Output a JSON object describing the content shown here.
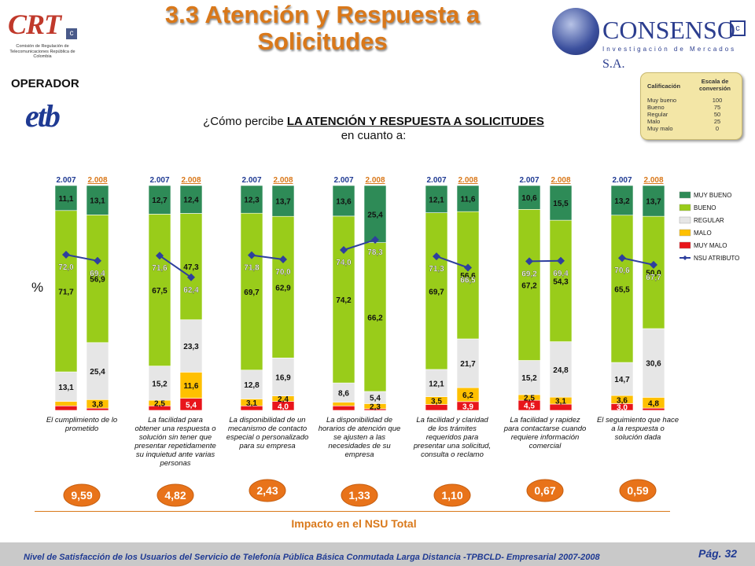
{
  "title": "3.3 Atención y Respuesta a Solicitudes",
  "logos": {
    "crt": "CRT",
    "crt_badge": "c",
    "crt_sub": "Comisión de Regulación de Telecomunicaciones República de Colombia",
    "consenso": "CONSENSO",
    "consenso_sa": "S.A.",
    "consenso_sub": "Investigación de Mercados",
    "consenso_badge": "c"
  },
  "operator_label": "OPERADOR",
  "operator_logo": "etb",
  "question_prefix": "¿Cómo percibe ",
  "question_bold": "LA ATENCIÓN Y RESPUESTA A SOLICITUDES",
  "question_suffix": " en cuanto a:",
  "scale_table": {
    "header_left": "Calificación",
    "header_right": "Escala de conversión",
    "rows": [
      {
        "label": "Muy bueno",
        "value": "100"
      },
      {
        "label": "Bueno",
        "value": "75"
      },
      {
        "label": "Regular",
        "value": "50"
      },
      {
        "label": "Malo",
        "value": "25"
      },
      {
        "label": "Muy malo",
        "value": "0"
      }
    ]
  },
  "percent_symbol": "%",
  "impact_label": "Impacto en el NSU Total",
  "footer": "Nivel de Satisfacción de los Usuarios del Servicio de Telefonía Pública Básica Conmutada Larga Distancia -TPBCLD- Empresarial 2007-2008",
  "page_number": "Pág. 32",
  "chart_data": {
    "type": "bar",
    "stacked": true,
    "percent": true,
    "colors": {
      "MUY BUENO": "#2e8b57",
      "BUENO": "#99cc1a",
      "REGULAR": "#e6e6e6",
      "MALO": "#ffc000",
      "MUY MALO": "#e8151b",
      "NSU ATRIBUTO": "#2e3f9e"
    },
    "legend": [
      "MUY BUENO",
      "BUENO",
      "REGULAR",
      "MALO",
      "MUY MALO",
      "NSU ATRIBUTO"
    ],
    "legend_position": "right",
    "year_labels": [
      "2.007",
      "2.008"
    ],
    "groups": [
      {
        "label": "El cumplimiento de lo prometido",
        "impact": "9,59",
        "bars": [
          {
            "year": "2.007",
            "muy_malo": 2.0,
            "malo": 2.0,
            "regular": 13.1,
            "bueno": 71.7,
            "muy_bueno": 11.1,
            "nsu": 72.0,
            "labels": {
              "muy_bueno": "11,1",
              "bueno": "71,7",
              "regular": "13,1"
            }
          },
          {
            "year": "2.008",
            "muy_malo": 1.0,
            "malo": 3.8,
            "regular": 25.4,
            "bueno": 56.9,
            "muy_bueno": 13.1,
            "nsu": 69.4,
            "labels": {
              "muy_bueno": "13,1",
              "bueno": "56,9",
              "regular": "25,4",
              "malo": "3,8"
            }
          }
        ]
      },
      {
        "label": "La facilidad para obtener una respuesta o solución sin tener que presentar repetidamente su inquietud ante varias personas",
        "impact": "4,82",
        "bars": [
          {
            "year": "2.007",
            "muy_malo": 2.0,
            "malo": 2.5,
            "regular": 15.2,
            "bueno": 67.5,
            "muy_bueno": 12.7,
            "nsu": 71.6,
            "labels": {
              "muy_bueno": "12,7",
              "bueno": "67,5",
              "regular": "15,2",
              "malo": "2,5"
            }
          },
          {
            "year": "2.008",
            "muy_malo": 5.4,
            "malo": 11.6,
            "regular": 23.3,
            "bueno": 47.3,
            "muy_bueno": 12.4,
            "nsu": 62.4,
            "labels": {
              "muy_bueno": "12,4",
              "bueno": "47,3",
              "regular": "23,3",
              "malo": "11,6",
              "muy_malo": "5,4"
            }
          }
        ]
      },
      {
        "label": "La disponibilidad de un mecanismo de contacto especial o personalizado para su empresa",
        "impact": "2,43",
        "bars": [
          {
            "year": "2.007",
            "muy_malo": 2.0,
            "malo": 3.1,
            "regular": 12.8,
            "bueno": 69.7,
            "muy_bueno": 12.3,
            "nsu": 71.8,
            "labels": {
              "muy_bueno": "12,3",
              "bueno": "69,7",
              "regular": "12,8",
              "malo": "3,1"
            }
          },
          {
            "year": "2.008",
            "muy_malo": 4.0,
            "malo": 2.4,
            "regular": 16.9,
            "bueno": 62.9,
            "muy_bueno": 13.7,
            "nsu": 70.0,
            "labels": {
              "muy_bueno": "13,7",
              "bueno": "62,9",
              "regular": "16,9",
              "malo": "2,4",
              "muy_malo": "4,0"
            }
          }
        ]
      },
      {
        "label": "La disponibilidad de horarios de atención que se ajusten a las necesidades de su empresa",
        "impact": "1,33",
        "bars": [
          {
            "year": "2.007",
            "muy_malo": 2.0,
            "malo": 1.6,
            "regular": 8.6,
            "bueno": 74.2,
            "muy_bueno": 13.6,
            "nsu": 74.0,
            "labels": {
              "muy_bueno": "13,6",
              "bueno": "74,2",
              "regular": "8,6"
            }
          },
          {
            "year": "2.008",
            "muy_malo": 0.7,
            "malo": 2.3,
            "regular": 5.4,
            "bueno": 66.2,
            "muy_bueno": 25.4,
            "nsu": 78.3,
            "labels": {
              "muy_bueno": "25,4",
              "bueno": "66,2",
              "regular": "5,4",
              "malo": "2,3"
            }
          }
        ]
      },
      {
        "label": "La facilidad y claridad de los trámites requeridos para presentar una solicitud, consulta o reclamo",
        "impact": "1,10",
        "bars": [
          {
            "year": "2.007",
            "muy_malo": 2.6,
            "malo": 3.5,
            "regular": 12.1,
            "bueno": 69.7,
            "muy_bueno": 12.1,
            "nsu": 71.3,
            "labels": {
              "muy_bueno": "12,1",
              "bueno": "69,7",
              "regular": "12,1",
              "malo": "3,5"
            }
          },
          {
            "year": "2.008",
            "muy_malo": 3.9,
            "malo": 6.2,
            "regular": 21.7,
            "bueno": 56.6,
            "muy_bueno": 11.6,
            "nsu": 66.5,
            "labels": {
              "muy_bueno": "11,6",
              "bueno": "56,6",
              "regular": "21,7",
              "malo": "6,2",
              "muy_malo": "3,9"
            }
          }
        ]
      },
      {
        "label": "La facilidad y rapidez para contactarse cuando requiere información comercial",
        "impact": "0,67",
        "bars": [
          {
            "year": "2.007",
            "muy_malo": 4.5,
            "malo": 2.5,
            "regular": 15.2,
            "bueno": 67.2,
            "muy_bueno": 10.6,
            "nsu": 69.2,
            "labels": {
              "muy_bueno": "10,6",
              "bueno": "67,2",
              "regular": "15,2",
              "malo": "2,5",
              "muy_malo": "4,5"
            }
          },
          {
            "year": "2.008",
            "muy_malo": 2.8,
            "malo": 3.1,
            "regular": 24.8,
            "bueno": 54.3,
            "muy_bueno": 15.5,
            "nsu": 69.4,
            "labels": {
              "muy_bueno": "15,5",
              "bueno": "54,3",
              "regular": "24,8",
              "malo": "3,1"
            }
          }
        ]
      },
      {
        "label": "El seguimiento que hace a la respuesta o solución dada",
        "impact": "0,59",
        "bars": [
          {
            "year": "2.007",
            "muy_malo": 3.0,
            "malo": 3.6,
            "regular": 14.7,
            "bueno": 65.5,
            "muy_bueno": 13.2,
            "nsu": 70.6,
            "labels": {
              "muy_bueno": "13,2",
              "bueno": "65,5",
              "regular": "14,7",
              "malo": "3,6",
              "muy_malo": "3,0"
            }
          },
          {
            "year": "2.008",
            "muy_malo": 1.0,
            "malo": 4.8,
            "regular": 30.6,
            "bueno": 50.0,
            "muy_bueno": 13.7,
            "nsu": 67.7,
            "labels": {
              "muy_bueno": "13,7",
              "bueno": "50,0",
              "regular": "30,6",
              "malo": "4,8"
            }
          }
        ]
      }
    ]
  }
}
